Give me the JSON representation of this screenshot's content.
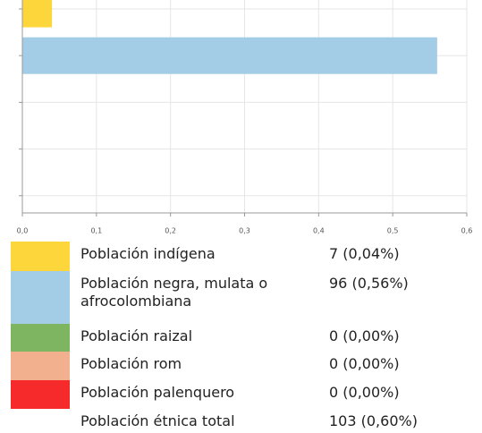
{
  "chart_data": {
    "type": "bar",
    "orientation": "horizontal",
    "categories": [
      "Población indígena",
      "Población negra, mulata o afrocolombiana",
      "Población raizal",
      "Población rom",
      "Población palenquero"
    ],
    "values": [
      0.04,
      0.56,
      0,
      0,
      0
    ],
    "value_labels": [
      "7 (0,04%)",
      "96 (0,56%)",
      "0 (0,00%)",
      "0 (0,00%)",
      "0 (0,00%)"
    ],
    "colors": [
      "#fdd63b",
      "#a3cde6",
      "#7db560",
      "#f3b08f",
      "#f72a2b"
    ],
    "xlim": [
      0,
      0.6
    ],
    "xticks": [
      {
        "value": 0,
        "label": "0,0"
      },
      {
        "value": 0.1,
        "label": "0,1"
      },
      {
        "value": 0.2,
        "label": "0,2"
      },
      {
        "value": 0.3,
        "label": "0,3"
      },
      {
        "value": 0.4,
        "label": "0,4"
      },
      {
        "value": 0.5,
        "label": "0,5"
      },
      {
        "value": 0.6,
        "label": "0,6"
      }
    ],
    "grid": true,
    "total": {
      "name": "Población étnica total",
      "value_label": "103 (0,60%)"
    }
  }
}
